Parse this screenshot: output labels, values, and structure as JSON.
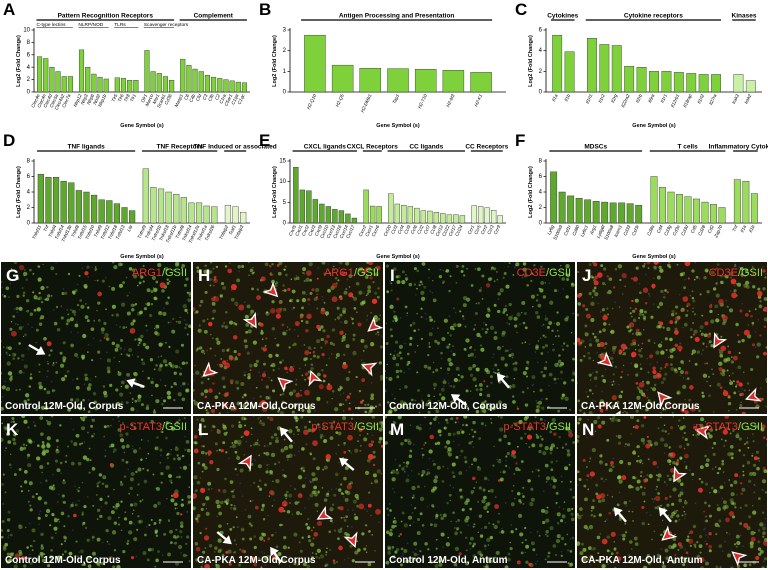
{
  "chart_data": [
    {
      "label": "A",
      "type": "bar",
      "ylabel": "Log2 (Fold Change)",
      "xlabel": "Gene Symbol (s)",
      "ylim": [
        0,
        10
      ],
      "yticks": [
        0,
        2,
        4,
        6,
        8,
        10
      ],
      "groups": [
        {
          "name": "Pattern Recognition Receptors",
          "color": "#7fd13b",
          "subgroups": [
            {
              "name": "C-type lectins",
              "categories": [
                "Clec4e",
                "Clec4n",
                "Clec4d",
                "Clec5a",
                "Clec4a2",
                "Clec7a"
              ],
              "values": [
                5.7,
                5.4,
                4.0,
                3.3,
                2.5,
                2.5
              ]
            },
            {
              "name": "NLRP/NOD",
              "categories": [
                "Nlrp12",
                "Nlrp3",
                "Nlrp6",
                "Nod2",
                "Nlrp1b"
              ],
              "values": [
                6.8,
                4.0,
                2.9,
                2.4,
                2.1
              ]
            },
            {
              "name": "TLRs",
              "categories": [
                "Tlr5",
                "Tlr6",
                "Tlr8",
                "Tlr1"
              ],
              "values": [
                2.3,
                2.2,
                1.9,
                1.9
              ]
            },
            {
              "name": "Scavenger receptors",
              "categories": [
                "Olr1",
                "Marco",
                "Msr1",
                "Scarb1",
                "Cd36"
              ],
              "values": [
                6.7,
                3.3,
                3.0,
                2.5,
                1.9
              ]
            }
          ]
        },
        {
          "name": "Complement",
          "color": "#7fd13b",
          "subgroups": [
            {
              "categories": [
                "Masp1",
                "C6",
                "C4b",
                "Cfd",
                "C3",
                "Cfb",
                "C2",
                "C1ra",
                "C5ar1",
                "C1qa",
                "C1qc"
              ],
              "values": [
                5.3,
                4.3,
                3.7,
                3.3,
                2.7,
                2.4,
                2.2,
                2.0,
                1.8,
                1.6,
                1.5
              ]
            }
          ]
        }
      ]
    },
    {
      "label": "B",
      "type": "bar",
      "ylabel": "Log2 (Fold Change)",
      "xlabel": "Gene Symbol (s)",
      "ylim": [
        0,
        3
      ],
      "yticks": [
        0,
        1,
        2,
        3
      ],
      "groups": [
        {
          "name": "Antigen Processing and Presentation",
          "color": "#7fd13b",
          "subgroups": [
            {
              "categories": [
                "H2-Q10",
                "H2-Q5",
                "H2-DMb1",
                "Tap1",
                "H2-T10",
                "H2-M3",
                "H2-K1"
              ],
              "values": [
                2.75,
                1.3,
                1.15,
                1.13,
                1.1,
                1.05,
                0.95
              ]
            }
          ]
        }
      ]
    },
    {
      "label": "C",
      "type": "bar",
      "ylabel": "Log2 (Fold Change)",
      "xlabel": "Gene Symbol (s)",
      "ylim": [
        0,
        6
      ],
      "yticks": [
        0,
        2,
        4,
        6
      ],
      "groups": [
        {
          "name": "Cytokines",
          "color": "#7fd13b",
          "subgroups": [
            {
              "categories": [
                "Il1a",
                "Il1b"
              ],
              "values": [
                5.5,
                3.9
              ]
            }
          ]
        },
        {
          "name": "Cytokine receptors",
          "color": "#7fd13b",
          "subgroups": [
            {
              "categories": [
                "Il1rl1",
                "Il1r2",
                "Il2rg",
                "Il22ra2",
                "Il2rb",
                "Il6ra",
                "Il1r1",
                "Il12rb1",
                "Il18rap",
                "Il1rl2",
                "Il27ra"
              ],
              "values": [
                5.2,
                4.6,
                4.5,
                2.5,
                2.4,
                2.0,
                2.0,
                1.9,
                1.8,
                1.7,
                1.7
              ]
            }
          ]
        },
        {
          "name": "Kinases",
          "color": "#c9f0a4",
          "subgroups": [
            {
              "categories": [
                "Irak3",
                "Irak2"
              ],
              "values": [
                1.7,
                1.1
              ]
            }
          ]
        }
      ]
    },
    {
      "label": "D",
      "type": "bar",
      "ylabel": "Log2 (Fold Change)",
      "xlabel": "Gene Symbol (s)",
      "ylim": [
        0,
        8
      ],
      "yticks": [
        0,
        2,
        4,
        6,
        8
      ],
      "groups": [
        {
          "name": "TNF ligands",
          "color": "#5fa82e",
          "subgroups": [
            {
              "categories": [
                "Tnfsf11",
                "Tnf",
                "Tnfsf4",
                "Tnfsf14",
                "Tnfsf13b",
                "Tnfsf8",
                "Tnfsf15",
                "Tnfsf10",
                "Tnfsf9",
                "Tnfsf12",
                "Tnfsf18",
                "Tnfsf13",
                "Lta"
              ],
              "values": [
                6.3,
                5.9,
                5.9,
                5.4,
                5.2,
                4.2,
                4.0,
                3.6,
                3.0,
                2.9,
                2.5,
                2.0,
                1.6
              ]
            }
          ]
        },
        {
          "name": "TNF Receptors",
          "color": "#b6e58b",
          "subgroups": [
            {
              "categories": [
                "Tnfrsf9",
                "Tnfrsf4",
                "Tnfrsf1b",
                "Tnfrsf18",
                "Tnfrsf11b",
                "Tnfrsf8",
                "Tnfrsf14",
                "Tnfrsf12a",
                "Tnfrsf1a",
                "Tnfrsf26"
              ],
              "values": [
                7.0,
                4.6,
                4.4,
                4.0,
                3.7,
                3.3,
                2.6,
                2.6,
                2.2,
                2.1
              ]
            }
          ]
        },
        {
          "name": "TNF Induced or associated",
          "color": "#e2f5c8",
          "subgroups": [
            {
              "categories": [
                "Tnfaip2",
                "Traf1",
                "Tnfaip3"
              ],
              "values": [
                2.3,
                2.1,
                1.4
              ]
            }
          ]
        }
      ]
    },
    {
      "label": "E",
      "type": "bar",
      "ylabel": "Log2 (Fold Change)",
      "xlabel": "Gene Symbol (s)",
      "ylim": [
        0,
        15
      ],
      "yticks": [
        0,
        5,
        10,
        15
      ],
      "groups": [
        {
          "name": "CXCL ligands",
          "color": "#5fa82e",
          "subgroups": [
            {
              "categories": [
                "Cxcl5",
                "Cxcl1",
                "Cxcl2",
                "Cxcl3",
                "Cxcl9",
                "Cxcl10",
                "Cxcl13",
                "Cxcl16",
                "Cxcl14",
                "Cxcl17"
              ],
              "values": [
                13.5,
                8.0,
                7.8,
                5.7,
                4.6,
                4.0,
                3.3,
                3.0,
                2.2,
                1.2
              ]
            }
          ]
        },
        {
          "name": "CXCL Receptors",
          "color": "#9bdc5c",
          "subgroups": [
            {
              "categories": [
                "Cxcr2",
                "Cxcr1",
                "Cxcr6"
              ],
              "values": [
                8.0,
                4.1,
                4.0
              ]
            }
          ]
        },
        {
          "name": "CC ligands",
          "color": "#c4ec98",
          "subgroups": [
            {
              "categories": [
                "Ccl20",
                "Ccl3",
                "Ccl4",
                "Ccl9",
                "Ccl6",
                "Ccl2",
                "Ccl7",
                "Ccl8",
                "Ccl12",
                "Ccl22",
                "Ccl17",
                "Ccl24"
              ],
              "values": [
                7.1,
                4.6,
                4.3,
                4.0,
                3.6,
                3.0,
                2.9,
                2.6,
                2.3,
                2.0,
                2.0,
                1.8
              ]
            }
          ]
        },
        {
          "name": "CC Receptors",
          "color": "#e0f6c6",
          "subgroups": [
            {
              "categories": [
                "Ccr1",
                "Ccr5",
                "Ccr2",
                "Ccr3",
                "Ccr9"
              ],
              "values": [
                4.2,
                4.0,
                3.7,
                3.1,
                1.8
              ]
            }
          ]
        }
      ]
    },
    {
      "label": "F",
      "type": "bar",
      "ylabel": "Log2 (Fold Change)",
      "xlabel": "Gene Symbol (s)",
      "ylim": [
        0,
        8
      ],
      "yticks": [
        0,
        2,
        4,
        6,
        8
      ],
      "groups": [
        {
          "name": "MDSCs",
          "color": "#5fa82e",
          "subgroups": [
            {
              "categories": [
                "Ly6g",
                "S100a9",
                "Csf1r",
                "Cd80",
                "Ly6c1",
                "Arg1",
                "Ly6g6f",
                "S100a8",
                "Icam1",
                "Cd33",
                "Csf3r"
              ],
              "values": [
                6.6,
                4.0,
                3.5,
                3.2,
                3.0,
                2.8,
                2.7,
                2.6,
                2.6,
                2.5,
                2.3
              ]
            }
          ]
        },
        {
          "name": "T cells",
          "color": "#9bdc5c",
          "subgroups": [
            {
              "categories": [
                "Cd8a",
                "Cd4",
                "Cd3g",
                "Cd3e",
                "Cd3d",
                "Cd5",
                "Cd28",
                "Cd2",
                "Zap70"
              ],
              "values": [
                6.0,
                4.6,
                4.0,
                3.7,
                3.4,
                3.1,
                2.7,
                2.4,
                2.0
              ]
            }
          ]
        },
        {
          "name": "Inflammatory Cytokines",
          "color": "#9bdc5c",
          "subgroups": [
            {
              "categories": [
                "Tnf",
                "Il1a",
                "Il1b"
              ],
              "values": [
                5.6,
                5.4,
                3.8
              ]
            }
          ]
        }
      ]
    }
  ],
  "panels": [
    {
      "label": "G",
      "marker": "ARG1",
      "counterstain": "/GSII",
      "caption": "Control 12M-Old, Corpus"
    },
    {
      "label": "H",
      "marker": "ARG1",
      "counterstain": "/GSII",
      "caption": "CA-PKA 12M-Old,Corpus"
    },
    {
      "label": "I",
      "marker": "CD3E",
      "counterstain": "/GSII",
      "caption": "Control 12M-Old, Corpus"
    },
    {
      "label": "J",
      "marker": "CD3E",
      "counterstain": "/GSII",
      "caption": "CA-PKA 12M-Old,Corpus"
    },
    {
      "label": "K",
      "marker": "p-STAT3",
      "counterstain": "/GSII",
      "caption": "Control 12M-Old,Corpus"
    },
    {
      "label": "L",
      "marker": "p-STAT3",
      "counterstain": "/GSII",
      "caption": "CA-PKA 12M-Old,Corpus"
    },
    {
      "label": "M",
      "marker": "p-STAT3",
      "counterstain": "/GSII",
      "caption": "Control 12M-Old, Antrum"
    },
    {
      "label": "N",
      "marker": "p-STAT3",
      "counterstain": "/GSII",
      "caption": "CA-PKA 12M-Old, Antrum"
    }
  ]
}
